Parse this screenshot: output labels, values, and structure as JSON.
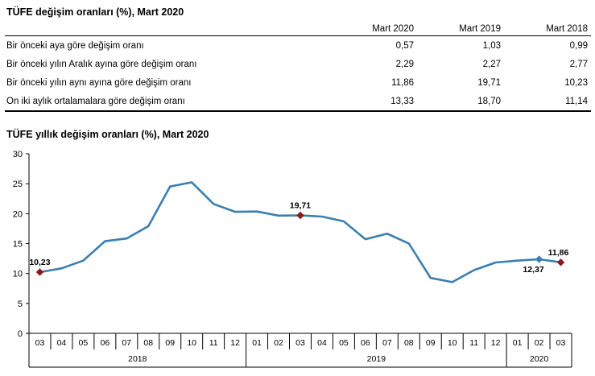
{
  "table": {
    "title": "TÜFE değişim oranları (%), Mart 2020",
    "headers": [
      "Mart 2020",
      "Mart 2019",
      "Mart 2018"
    ],
    "rows": [
      {
        "label": "Bir önceki aya göre değişim oranı",
        "values": [
          "0,57",
          "1,03",
          "0,99"
        ]
      },
      {
        "label": "Bir önceki yılın Aralık ayına göre değişim oranı",
        "values": [
          "2,29",
          "2,27",
          "2,77"
        ]
      },
      {
        "label": "Bir önceki yılın aynı ayına göre değişim oranı",
        "values": [
          "11,86",
          "19,71",
          "10,23"
        ]
      },
      {
        "label": "On iki aylık ortalamalara göre değişim oranı",
        "values": [
          "13,33",
          "18,70",
          "11,14"
        ]
      }
    ]
  },
  "chart_data": {
    "type": "line",
    "title": "TÜFE yıllık değişim oranları (%), Mart 2020",
    "categories": [
      "03",
      "04",
      "05",
      "06",
      "07",
      "08",
      "09",
      "10",
      "11",
      "12",
      "01",
      "02",
      "03",
      "04",
      "05",
      "06",
      "07",
      "08",
      "09",
      "10",
      "11",
      "12",
      "01",
      "02",
      "03"
    ],
    "year_groups": [
      {
        "label": "2018",
        "start": 0,
        "end": 9
      },
      {
        "label": "2019",
        "start": 10,
        "end": 21
      },
      {
        "label": "2020",
        "start": 22,
        "end": 24
      }
    ],
    "series": [
      {
        "values": [
          10.23,
          10.85,
          12.15,
          15.39,
          15.85,
          17.9,
          24.52,
          25.24,
          21.62,
          20.3,
          20.35,
          19.67,
          19.71,
          19.5,
          18.71,
          15.72,
          16.65,
          15.01,
          9.26,
          8.55,
          10.56,
          11.84,
          12.15,
          12.37,
          11.86
        ]
      }
    ],
    "highlighted": [
      {
        "index": 0,
        "label": "10,23",
        "color": "#8b1a1a"
      },
      {
        "index": 12,
        "label": "19,71",
        "color": "#8b1a1a"
      },
      {
        "index": 23,
        "label": "12,37",
        "color": "#3a7fb0"
      },
      {
        "index": 24,
        "label": "11,86",
        "color": "#8b1a1a"
      }
    ],
    "ylim": [
      0,
      30
    ],
    "yticks": [
      0,
      5,
      10,
      15,
      20,
      25,
      30
    ],
    "line_color": "#3a7fb0",
    "grid": false
  }
}
